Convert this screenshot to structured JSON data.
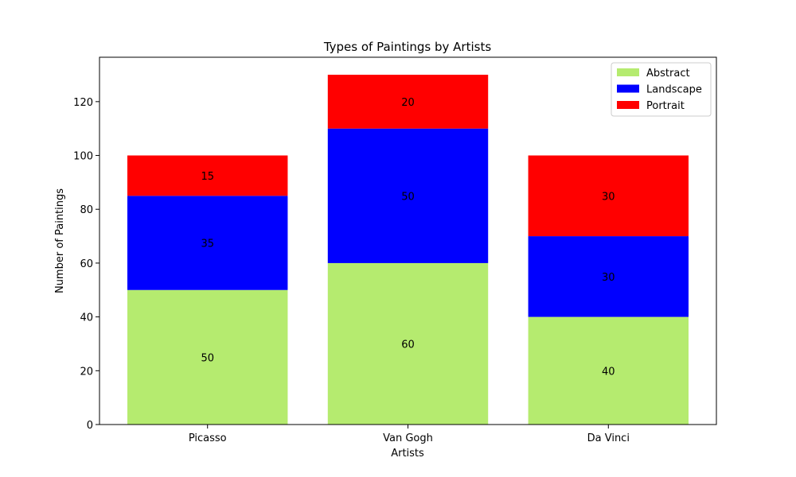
{
  "chart_data": {
    "type": "bar",
    "stacked": true,
    "title": "Types of Paintings by Artists",
    "xlabel": "Artists",
    "ylabel": "Number of Paintings",
    "categories": [
      "Picasso",
      "Van Gogh",
      "Da Vinci"
    ],
    "ylim": [
      0,
      136.5
    ],
    "yticks": [
      0,
      20,
      40,
      60,
      80,
      100,
      120
    ],
    "grid": false,
    "legend_position": "top-right",
    "series": [
      {
        "name": "Abstract",
        "color": "#b5eb6f",
        "values": [
          50,
          60,
          40
        ]
      },
      {
        "name": "Landscape",
        "color": "#0000ff",
        "values": [
          35,
          50,
          30
        ]
      },
      {
        "name": "Portrait",
        "color": "#ff0000",
        "values": [
          15,
          20,
          30
        ]
      }
    ]
  }
}
